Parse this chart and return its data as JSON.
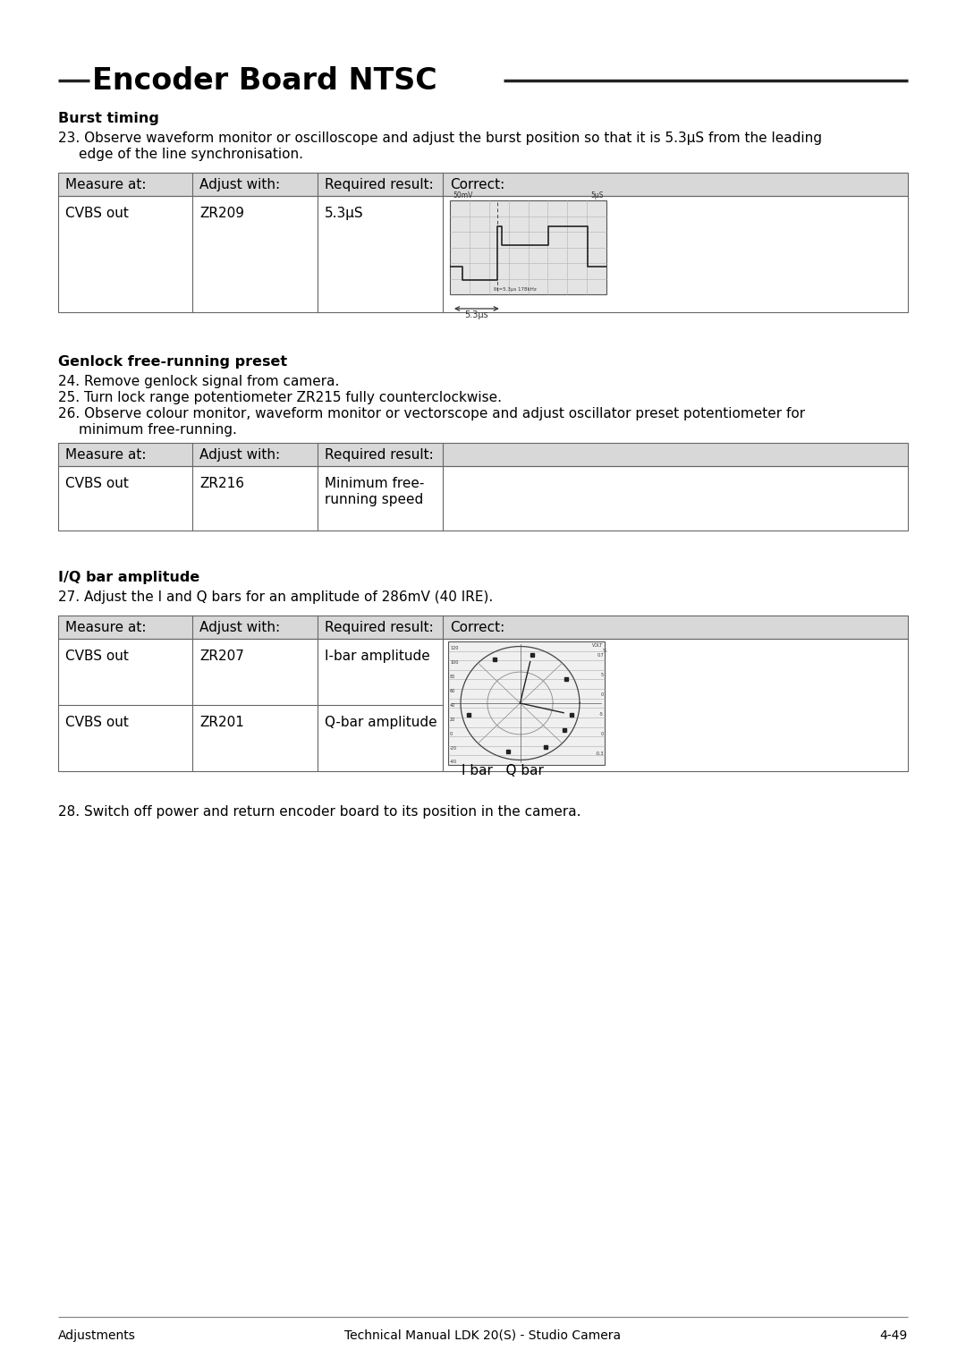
{
  "title": "Encoder Board NTSC",
  "bg_color": "#ffffff",
  "text_color": "#000000",
  "section1_heading": "Burst timing",
  "table1_headers": [
    "Measure at:",
    "Adjust with:",
    "Required result:",
    "Correct:"
  ],
  "table1_row1": [
    "CVBS out",
    "ZR209",
    "5.3μS",
    ""
  ],
  "section2_heading": "Genlock free-running preset",
  "table2_headers": [
    "Measure at:",
    "Adjust with:",
    "Required result:"
  ],
  "table2_row1": [
    "CVBS out",
    "ZR216",
    ""
  ],
  "section3_heading": "I/Q bar amplitude",
  "section3_para": "27. Adjust the I and Q bars for an amplitude of 286mV (40 IRE).",
  "table3_headers": [
    "Measure at:",
    "Adjust with:",
    "Required result:",
    "Correct:"
  ],
  "table3_row1": [
    "CVBS out",
    "ZR207",
    "I-bar amplitude",
    ""
  ],
  "table3_row2": [
    "CVBS out",
    "ZR201",
    "Q-bar amplitude",
    ""
  ],
  "section4_para": "28. Switch off power and return encoder board to its position in the camera.",
  "footer_left": "Adjustments",
  "footer_center": "Technical Manual LDK 20(S) - Studio Camera",
  "footer_right": "4-49",
  "table_header_bg": "#d8d8d8",
  "table_border_color": "#666666",
  "line_color": "#555555"
}
